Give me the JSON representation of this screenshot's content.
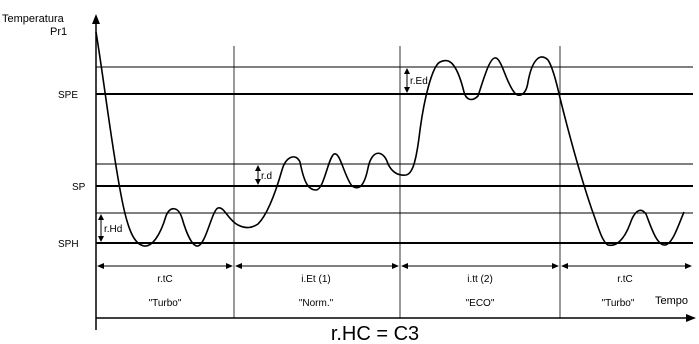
{
  "y_axis": {
    "label_line1": "Temperatura",
    "label_line2": "Pr1"
  },
  "x_axis": {
    "label": "Tempo"
  },
  "levels": {
    "spe": "SPE",
    "sp": "SP",
    "sph": "SPH"
  },
  "deltas": {
    "rhd": "r.Hd",
    "rd": "r.d",
    "red": "r.Ed"
  },
  "phases": [
    {
      "duration": "r.tC",
      "mode": "\"Turbo\""
    },
    {
      "duration": "i.Et (1)",
      "mode": "\"Norm.\""
    },
    {
      "duration": "i.tt (2)",
      "mode": "\"ECO\""
    },
    {
      "duration": "r.tC",
      "mode": "\"Turbo\""
    }
  ],
  "footer": "r.HC = C3"
}
